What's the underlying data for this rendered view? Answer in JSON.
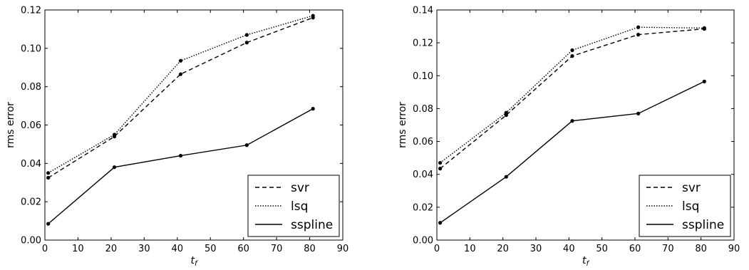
{
  "chart_data": [
    {
      "type": "line",
      "xlabel": "t_f",
      "ylabel": "rms error",
      "xlim": [
        0,
        90
      ],
      "ylim": [
        0,
        0.12
      ],
      "xticks": [
        0,
        10,
        20,
        30,
        40,
        50,
        60,
        70,
        80,
        90
      ],
      "yticks": [
        0.0,
        0.02,
        0.04,
        0.06,
        0.08,
        0.1,
        0.12
      ],
      "ytick_labels": [
        "0.00",
        "0.02",
        "0.04",
        "0.06",
        "0.08",
        "0.10",
        "0.12"
      ],
      "grid": false,
      "legend_position": "bottom-right",
      "x": [
        1,
        21,
        41,
        61,
        81
      ],
      "series": [
        {
          "name": "svr",
          "style": "dashed",
          "color": "#000000",
          "values": [
            0.0325,
            0.054,
            0.0865,
            0.103,
            0.116
          ]
        },
        {
          "name": "lsq",
          "style": "dotted",
          "color": "#000000",
          "values": [
            0.035,
            0.055,
            0.0935,
            0.107,
            0.117
          ]
        },
        {
          "name": "sspline",
          "style": "solid",
          "color": "#000000",
          "values": [
            0.0085,
            0.038,
            0.044,
            0.0495,
            0.0685
          ]
        }
      ]
    },
    {
      "type": "line",
      "xlabel": "t_f",
      "ylabel": "rms error",
      "xlim": [
        0,
        90
      ],
      "ylim": [
        0,
        0.14
      ],
      "xticks": [
        0,
        10,
        20,
        30,
        40,
        50,
        60,
        70,
        80,
        90
      ],
      "yticks": [
        0.0,
        0.02,
        0.04,
        0.06,
        0.08,
        0.1,
        0.12,
        0.14
      ],
      "ytick_labels": [
        "0.00",
        "0.02",
        "0.04",
        "0.06",
        "0.08",
        "0.10",
        "0.12",
        "0.14"
      ],
      "grid": false,
      "legend_position": "bottom-right",
      "x": [
        1,
        21,
        41,
        61,
        81
      ],
      "series": [
        {
          "name": "svr",
          "style": "dashed",
          "color": "#000000",
          "values": [
            0.0435,
            0.076,
            0.112,
            0.125,
            0.1285
          ]
        },
        {
          "name": "lsq",
          "style": "dotted",
          "color": "#000000",
          "values": [
            0.047,
            0.0775,
            0.1155,
            0.1295,
            0.129
          ]
        },
        {
          "name": "sspline",
          "style": "solid",
          "color": "#000000",
          "values": [
            0.0105,
            0.0385,
            0.0725,
            0.077,
            0.0965
          ]
        }
      ]
    }
  ]
}
